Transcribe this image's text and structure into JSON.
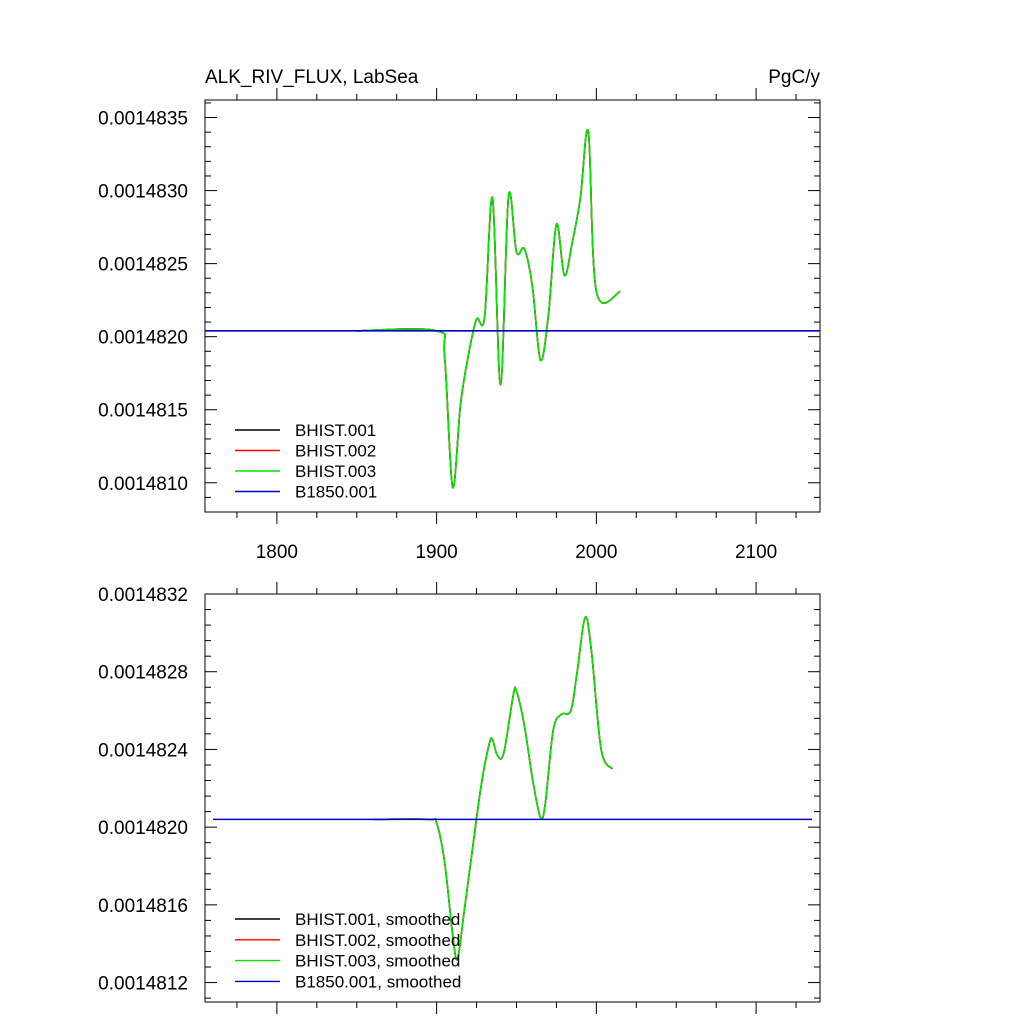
{
  "chart_data": [
    {
      "type": "line",
      "title": "ALK_RIV_FLUX, LabSea",
      "units": "PgC/y",
      "xlim": [
        1755,
        2140
      ],
      "ylim": [
        0.0014808,
        0.00148362
      ],
      "xticks": [
        1800,
        1900,
        2000,
        2100
      ],
      "xtick_labels": [
        "1800",
        "1900",
        "2000",
        "2100"
      ],
      "yticks": [
        0.001481,
        0.0014815,
        0.001482,
        0.0014825,
        0.001483,
        0.0014835
      ],
      "ytick_labels": [
        "0.0014810",
        "0.0014815",
        "0.0014820",
        "0.0014825",
        "0.0014830",
        "0.0014835"
      ],
      "legend_position": "bottom-left",
      "series": [
        {
          "name": "BHIST.001",
          "color": "#000000",
          "x": [
            1850,
            1900,
            1905,
            1910,
            1915,
            1920,
            1925,
            1930,
            1935,
            1940,
            1945,
            1950,
            1955,
            1960,
            1965,
            1970,
            1975,
            1980,
            1985,
            1990,
            1995,
            2000,
            2015
          ],
          "y": [
            0.00148204,
            0.00148204,
            0.00148186,
            0.00148097,
            0.00148154,
            0.00148188,
            0.00148212,
            0.00148213,
            0.00148295,
            0.00148167,
            0.00148296,
            0.00148258,
            0.0014826,
            0.00148234,
            0.00148184,
            0.00148215,
            0.00148277,
            0.00148242,
            0.00148265,
            0.00148295,
            0.0014834,
            0.00148231,
            0.00148231
          ]
        },
        {
          "name": "BHIST.002",
          "color": "#ff0000",
          "x": [
            1850,
            1900,
            1905,
            1910,
            1915,
            1920,
            1925,
            1930,
            1935,
            1940,
            1945,
            1950,
            1955,
            1960,
            1965,
            1970,
            1975,
            1980,
            1985,
            1990,
            1995,
            2000,
            2015
          ],
          "y": [
            0.00148204,
            0.00148204,
            0.00148186,
            0.00148097,
            0.00148154,
            0.00148188,
            0.00148212,
            0.00148213,
            0.00148295,
            0.00148167,
            0.00148296,
            0.00148258,
            0.0014826,
            0.00148234,
            0.00148184,
            0.00148215,
            0.00148277,
            0.00148242,
            0.00148265,
            0.00148295,
            0.0014834,
            0.00148231,
            0.00148231
          ]
        },
        {
          "name": "BHIST.003",
          "color": "#00e600",
          "x": [
            1850,
            1900,
            1905,
            1910,
            1915,
            1920,
            1925,
            1930,
            1935,
            1940,
            1945,
            1950,
            1955,
            1960,
            1965,
            1970,
            1975,
            1980,
            1985,
            1990,
            1995,
            2000,
            2015
          ],
          "y": [
            0.00148204,
            0.00148204,
            0.00148186,
            0.00148097,
            0.00148154,
            0.00148188,
            0.00148212,
            0.00148213,
            0.00148295,
            0.00148167,
            0.00148296,
            0.00148258,
            0.0014826,
            0.00148234,
            0.00148184,
            0.00148215,
            0.00148277,
            0.00148242,
            0.00148265,
            0.00148295,
            0.0014834,
            0.00148231,
            0.00148231
          ]
        },
        {
          "name": "B1850.001",
          "color": "#0000cc",
          "x": [
            1755,
            2140
          ],
          "y": [
            0.00148204,
            0.00148204
          ]
        }
      ]
    },
    {
      "type": "line",
      "title": "",
      "xlim": [
        1755,
        2140
      ],
      "ylim": [
        0.0014811,
        0.0014832
      ],
      "xticks": [
        1800,
        1900,
        2000,
        2100
      ],
      "xtick_labels": [],
      "yticks": [
        0.0014812,
        0.0014816,
        0.001482,
        0.0014824,
        0.0014828,
        0.0014832
      ],
      "ytick_labels": [
        "0.0014812",
        "0.0014816",
        "0.0014820",
        "0.0014824",
        "0.0014828",
        "0.0014832"
      ],
      "legend_position": "bottom-left",
      "series": [
        {
          "name": "BHIST.001, smoothed",
          "color": "#000000",
          "x": [
            1860,
            1895,
            1900,
            1905,
            1910,
            1913,
            1917,
            1922,
            1928,
            1933,
            1935,
            1938,
            1942,
            1948,
            1950,
            1955,
            1960,
            1965,
            1968,
            1973,
            1978,
            1984,
            1988,
            1993,
            1997,
            2003,
            2010
          ],
          "y": [
            0.00148204,
            0.00148204,
            0.00148202,
            0.00148182,
            0.00148145,
            0.00148132,
            0.00148155,
            0.00148186,
            0.00148222,
            0.00148243,
            0.00148245,
            0.00148237,
            0.00148238,
            0.00148268,
            0.0014827,
            0.00148252,
            0.00148225,
            0.00148205,
            0.00148212,
            0.0014825,
            0.00148258,
            0.0014826,
            0.0014828,
            0.00148308,
            0.0014829,
            0.0014824,
            0.0014823
          ]
        },
        {
          "name": "BHIST.002, smoothed",
          "color": "#ff0000",
          "x": [
            1860,
            1895,
            1900,
            1905,
            1910,
            1913,
            1917,
            1922,
            1928,
            1933,
            1935,
            1938,
            1942,
            1948,
            1950,
            1955,
            1960,
            1965,
            1968,
            1973,
            1978,
            1984,
            1988,
            1993,
            1997,
            2003,
            2010
          ],
          "y": [
            0.00148204,
            0.00148204,
            0.00148202,
            0.00148182,
            0.00148145,
            0.00148132,
            0.00148155,
            0.00148186,
            0.00148222,
            0.00148243,
            0.00148245,
            0.00148237,
            0.00148238,
            0.00148268,
            0.0014827,
            0.00148252,
            0.00148225,
            0.00148205,
            0.00148212,
            0.0014825,
            0.00148258,
            0.0014826,
            0.0014828,
            0.00148308,
            0.0014829,
            0.0014824,
            0.0014823
          ]
        },
        {
          "name": "BHIST.003, smoothed",
          "color": "#00e600",
          "x": [
            1860,
            1895,
            1900,
            1905,
            1910,
            1913,
            1917,
            1922,
            1928,
            1933,
            1935,
            1938,
            1942,
            1948,
            1950,
            1955,
            1960,
            1965,
            1968,
            1973,
            1978,
            1984,
            1988,
            1993,
            1997,
            2003,
            2010
          ],
          "y": [
            0.00148204,
            0.00148204,
            0.00148202,
            0.00148182,
            0.00148145,
            0.00148132,
            0.00148155,
            0.00148186,
            0.00148222,
            0.00148243,
            0.00148245,
            0.00148237,
            0.00148238,
            0.00148268,
            0.0014827,
            0.00148252,
            0.00148225,
            0.00148205,
            0.00148212,
            0.0014825,
            0.00148258,
            0.0014826,
            0.0014828,
            0.00148308,
            0.0014829,
            0.0014824,
            0.0014823
          ]
        },
        {
          "name": "B1850.001, smoothed",
          "color": "#0000cc",
          "x": [
            1760,
            2135
          ],
          "y": [
            0.00148204,
            0.00148204
          ]
        }
      ]
    }
  ]
}
